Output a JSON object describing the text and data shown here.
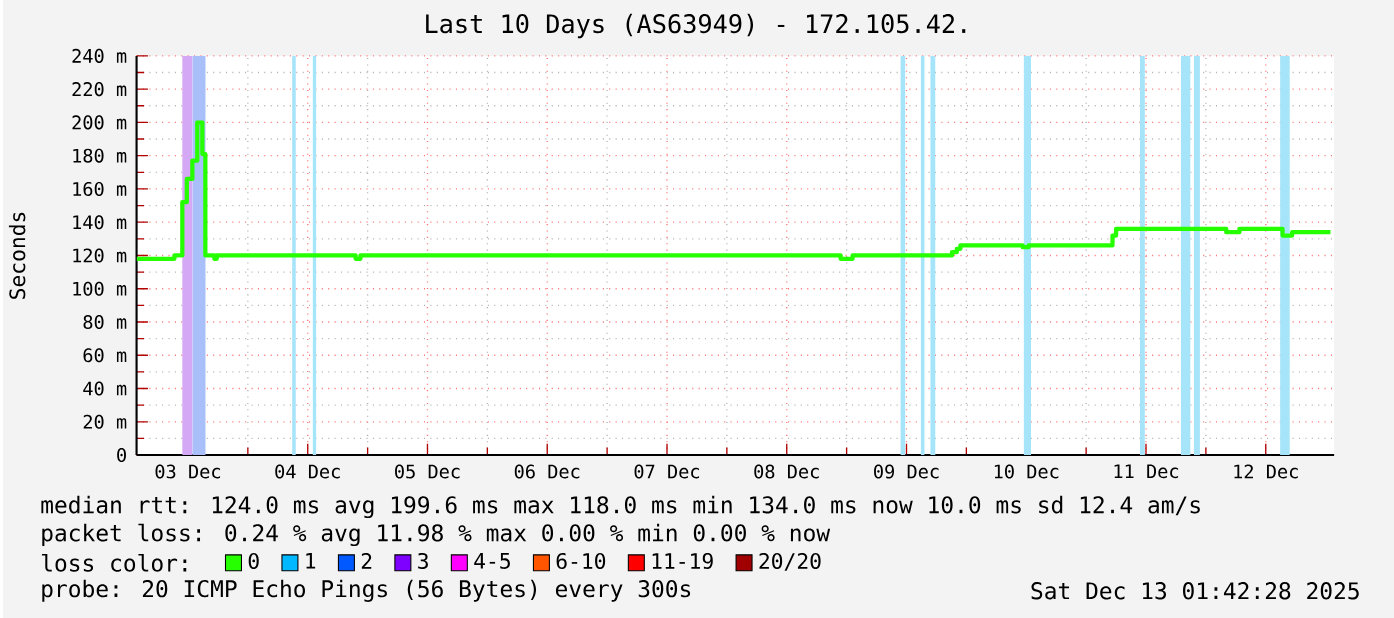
{
  "chart_data": {
    "type": "step",
    "title": "Last 10 Days (AS63949) - 172.105.42.",
    "ylabel": "Seconds",
    "xlim": [
      "2025-12-03T01:42",
      "2025-12-13T01:42"
    ],
    "xticks": [
      {
        "value": "2025-12-03T12:00",
        "label": "03 Dec"
      },
      {
        "value": "2025-12-04T00:00",
        "label": null
      },
      {
        "value": "2025-12-04T12:00",
        "label": "04 Dec"
      },
      {
        "value": "2025-12-05T00:00",
        "label": null
      },
      {
        "value": "2025-12-05T12:00",
        "label": "05 Dec"
      },
      {
        "value": "2025-12-06T00:00",
        "label": null
      },
      {
        "value": "2025-12-06T12:00",
        "label": "06 Dec"
      },
      {
        "value": "2025-12-07T00:00",
        "label": null
      },
      {
        "value": "2025-12-07T12:00",
        "label": "07 Dec"
      },
      {
        "value": "2025-12-08T00:00",
        "label": null
      },
      {
        "value": "2025-12-08T12:00",
        "label": "08 Dec"
      },
      {
        "value": "2025-12-09T00:00",
        "label": null
      },
      {
        "value": "2025-12-09T12:00",
        "label": "09 Dec"
      },
      {
        "value": "2025-12-10T00:00",
        "label": null
      },
      {
        "value": "2025-12-10T12:00",
        "label": "10 Dec"
      },
      {
        "value": "2025-12-11T00:00",
        "label": null
      },
      {
        "value": "2025-12-11T12:00",
        "label": "11 Dec"
      },
      {
        "value": "2025-12-12T00:00",
        "label": null
      },
      {
        "value": "2025-12-12T12:00",
        "label": "12 Dec"
      },
      {
        "value": "2025-12-13T00:00",
        "label": null
      }
    ],
    "ylim": [
      0,
      240
    ],
    "yticks": [
      {
        "value": 0,
        "label": "0"
      },
      {
        "value": 20,
        "label": "20 m"
      },
      {
        "value": 40,
        "label": "40 m"
      },
      {
        "value": 60,
        "label": "60 m"
      },
      {
        "value": 80,
        "label": "80 m"
      },
      {
        "value": 100,
        "label": "100 m"
      },
      {
        "value": 120,
        "label": "120 m"
      },
      {
        "value": 140,
        "label": "140 m"
      },
      {
        "value": 160,
        "label": "160 m"
      },
      {
        "value": 180,
        "label": "180 m"
      },
      {
        "value": 200,
        "label": "200 m"
      },
      {
        "value": 220,
        "label": "220 m"
      },
      {
        "value": 240,
        "label": "240 m"
      }
    ],
    "grid": true,
    "legend": "bottom",
    "legend_title": "loss color:",
    "series": [
      {
        "name": "0",
        "color": "#26ff00",
        "x": [
          "2025-12-03T01:42",
          "2025-12-03T09:17",
          "2025-12-03T10:52",
          "2025-12-03T11:46",
          "2025-12-03T12:53",
          "2025-12-03T13:52",
          "2025-12-03T14:53",
          "2025-12-03T15:29",
          "2025-12-03T17:17",
          "2025-12-03T17:46",
          "2025-12-04T21:36",
          "2025-12-04T22:34",
          "2025-12-08T22:48",
          "2025-12-09T01:12",
          "2025-12-09T21:07",
          "2025-12-09T22:05",
          "2025-12-09T22:48",
          "2025-12-10T11:17",
          "2025-12-10T12:29",
          "2025-12-11T05:17",
          "2025-12-11T06:00",
          "2025-12-12T04:05",
          "2025-12-12T06:43",
          "2025-12-12T15:22",
          "2025-12-12T17:17",
          "2025-12-13T00:58"
        ],
        "values": [
          118,
          120,
          152,
          166,
          177,
          200,
          181,
          120,
          118,
          120,
          118,
          120,
          118,
          120,
          122,
          124,
          126,
          125,
          126,
          132,
          136,
          134,
          136,
          132,
          134,
          134
        ]
      },
      {
        "name": "1",
        "color": "#00b8ff"
      },
      {
        "name": "2",
        "color": "#0059ff"
      },
      {
        "name": "3",
        "color": "#7e00ff"
      },
      {
        "name": "4-5",
        "color": "#ff00ff"
      },
      {
        "name": "6-10",
        "color": "#ff5500"
      },
      {
        "name": "11-19",
        "color": "#ff0000"
      },
      {
        "name": "20/20",
        "color": "#a10000"
      }
    ],
    "bands": [
      {
        "axis": "x",
        "from": "2025-12-03T10:52",
        "to": "2025-12-03T12:53",
        "color": "#d4a8f5"
      },
      {
        "axis": "x",
        "from": "2025-12-03T12:53",
        "to": "2025-12-03T15:33",
        "color": "#a9bff9"
      },
      {
        "axis": "x",
        "from": "2025-12-04T08:53",
        "to": "2025-12-04T09:36",
        "color": "#a6e4fa"
      },
      {
        "axis": "x",
        "from": "2025-12-04T12:58",
        "to": "2025-12-04T13:41",
        "color": "#a6e4fa"
      },
      {
        "axis": "x",
        "from": "2025-12-09T10:48",
        "to": "2025-12-09T11:46",
        "color": "#a6e4fa"
      },
      {
        "axis": "x",
        "from": "2025-12-09T14:53",
        "to": "2025-12-09T15:36",
        "color": "#a6e4fa"
      },
      {
        "axis": "x",
        "from": "2025-12-09T16:48",
        "to": "2025-12-09T17:46",
        "color": "#a6e4fa"
      },
      {
        "axis": "x",
        "from": "2025-12-10T11:31",
        "to": "2025-12-10T12:58",
        "color": "#a6e4fa"
      },
      {
        "axis": "x",
        "from": "2025-12-11T10:48",
        "to": "2025-12-11T11:46",
        "color": "#a6e4fa"
      },
      {
        "axis": "x",
        "from": "2025-12-11T18:58",
        "to": "2025-12-11T20:53",
        "color": "#a6e4fa"
      },
      {
        "axis": "x",
        "from": "2025-12-11T21:36",
        "to": "2025-12-11T22:48",
        "color": "#a6e4fa"
      },
      {
        "axis": "x",
        "from": "2025-12-12T14:53",
        "to": "2025-12-12T16:48",
        "color": "#a6e4fa"
      }
    ],
    "annotations": [
      "median rtt:  124.0 ms avg  199.6 ms max  118.0 ms min  134.0 ms now  10.0 ms sd  12.4  am/s",
      "packet loss: 0.24 % avg  11.98 % max  0.00 % min  0.00 % now",
      "probe:  20 ICMP Echo Pings (56 Bytes) every 300s",
      "Sat Dec 13 01:42:28 2025"
    ]
  }
}
